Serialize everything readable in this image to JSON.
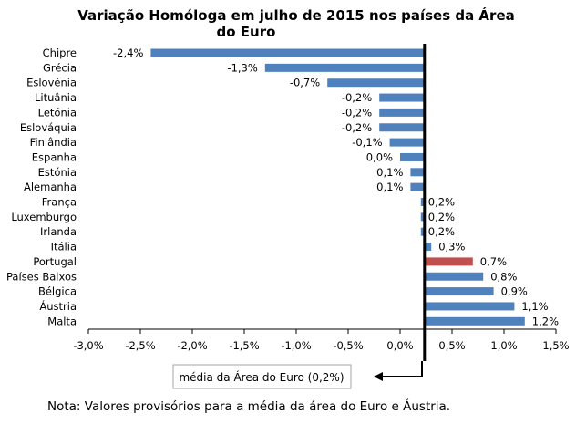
{
  "chart_data": {
    "type": "bar",
    "orientation": "horizontal",
    "title_line1": "Variação Homóloga em julho de 2015 nos países da Área",
    "title_line2": "do Euro",
    "categories": [
      "Chipre",
      "Grécia",
      "Eslovénia",
      "Lituânia",
      "Letónia",
      "Eslováquia",
      "Finlândia",
      "Espanha",
      "Estónia",
      "Alemanha",
      "França",
      "Luxemburgo",
      "Irlanda",
      "Itália",
      "Portugal",
      "Países Baixos",
      "Bélgica",
      "Áustria",
      "Malta"
    ],
    "values": [
      -2.4,
      -1.3,
      -0.7,
      -0.2,
      -0.2,
      -0.2,
      -0.1,
      0.0,
      0.1,
      0.1,
      0.2,
      0.2,
      0.2,
      0.3,
      0.7,
      0.8,
      0.9,
      1.1,
      1.2
    ],
    "value_labels": [
      "-2,4%",
      "-1,3%",
      "-0,7%",
      "-0,2%",
      "-0,2%",
      "-0,2%",
      "-0,1%",
      "0,0%",
      "0,1%",
      "0,1%",
      "0,2%",
      "0,2%",
      "0,2%",
      "0,3%",
      "0,7%",
      "0,8%",
      "0,9%",
      "1,1%",
      "1,2%"
    ],
    "xlim": [
      -3.0,
      1.5
    ],
    "xticks": [
      -3.0,
      -2.5,
      -2.0,
      -1.5,
      -1.0,
      -0.5,
      0.0,
      0.5,
      1.0,
      1.5
    ],
    "xtick_labels": [
      "-3,0%",
      "-2,5%",
      "-2,0%",
      "-1,5%",
      "-1,0%",
      "-0,5%",
      "0,0%",
      "0,5%",
      "1,0%",
      "1,5%"
    ],
    "euro_area_average": 0.2,
    "highlight": "Portugal",
    "bar_color": "#4F81BD",
    "highlight_color": "#C0504D"
  },
  "callout": {
    "text": "média da Área do Euro (0,2%)"
  },
  "note": "Nota: Valores provisórios para a média da área do Euro e Áustria."
}
